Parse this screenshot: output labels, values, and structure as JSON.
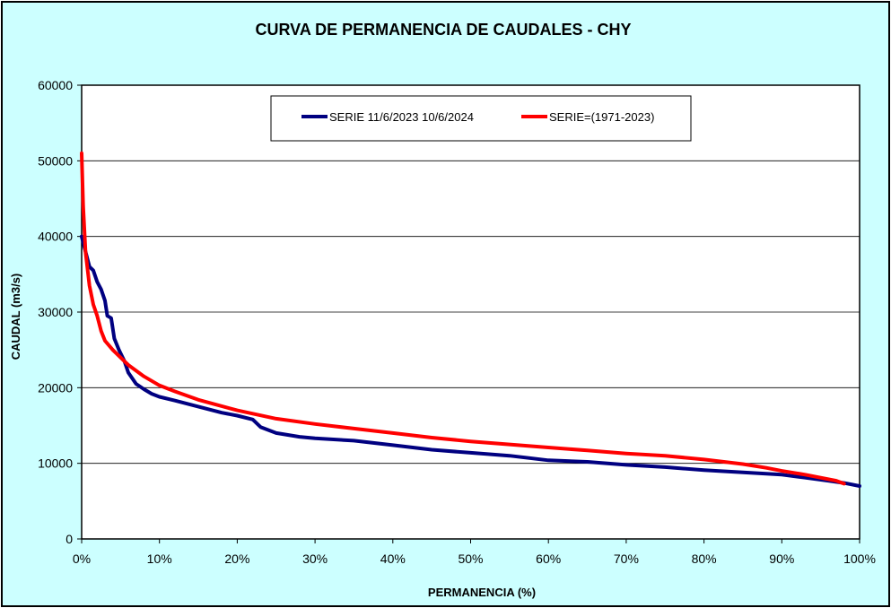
{
  "chart_data": {
    "type": "line",
    "title": "CURVA DE PERMANENCIA DE CAUDALES - CHY",
    "xlabel": "PERMANENCIA (%)",
    "ylabel": "CAUDAL (m3/s)",
    "xlim": [
      0,
      100
    ],
    "ylim": [
      0,
      60000
    ],
    "x_ticks": [
      "0%",
      "10%",
      "20%",
      "30%",
      "40%",
      "50%",
      "60%",
      "70%",
      "80%",
      "90%",
      "100%"
    ],
    "y_ticks": [
      "0",
      "10000",
      "20000",
      "30000",
      "40000",
      "50000",
      "60000"
    ],
    "grid": "horizontal",
    "legend_position": "top-center",
    "series": [
      {
        "name": "SERIE 11/6/2023 10/6/2024",
        "color": "#000080",
        "points": [
          [
            0,
            40000
          ],
          [
            0.5,
            38000
          ],
          [
            1,
            36000
          ],
          [
            1.5,
            35500
          ],
          [
            2,
            34000
          ],
          [
            2.5,
            33000
          ],
          [
            3,
            31500
          ],
          [
            3.3,
            29500
          ],
          [
            3.8,
            29200
          ],
          [
            4.2,
            26500
          ],
          [
            4.8,
            25000
          ],
          [
            5.5,
            23500
          ],
          [
            6,
            22000
          ],
          [
            7,
            20500
          ],
          [
            8,
            19800
          ],
          [
            9,
            19200
          ],
          [
            10,
            18800
          ],
          [
            12,
            18300
          ],
          [
            15,
            17500
          ],
          [
            18,
            16700
          ],
          [
            20,
            16300
          ],
          [
            22,
            15800
          ],
          [
            23,
            14800
          ],
          [
            25,
            14000
          ],
          [
            28,
            13500
          ],
          [
            30,
            13300
          ],
          [
            35,
            13000
          ],
          [
            40,
            12400
          ],
          [
            45,
            11800
          ],
          [
            50,
            11400
          ],
          [
            55,
            11000
          ],
          [
            60,
            10400
          ],
          [
            65,
            10200
          ],
          [
            70,
            9800
          ],
          [
            75,
            9500
          ],
          [
            80,
            9100
          ],
          [
            85,
            8800
          ],
          [
            90,
            8500
          ],
          [
            93,
            8100
          ],
          [
            96,
            7700
          ],
          [
            98,
            7400
          ],
          [
            100,
            7000
          ]
        ]
      },
      {
        "name": "SERIE=(1971-2023)",
        "color": "#ff0000",
        "points": [
          [
            0,
            51000
          ],
          [
            0.2,
            44000
          ],
          [
            0.5,
            38000
          ],
          [
            1,
            33500
          ],
          [
            1.5,
            31000
          ],
          [
            2,
            29500
          ],
          [
            2.5,
            27500
          ],
          [
            3,
            26200
          ],
          [
            4,
            25000
          ],
          [
            5,
            24000
          ],
          [
            6,
            23000
          ],
          [
            8,
            21500
          ],
          [
            10,
            20300
          ],
          [
            12,
            19500
          ],
          [
            15,
            18400
          ],
          [
            20,
            17000
          ],
          [
            25,
            15900
          ],
          [
            30,
            15200
          ],
          [
            35,
            14600
          ],
          [
            40,
            14000
          ],
          [
            45,
            13400
          ],
          [
            50,
            12900
          ],
          [
            55,
            12500
          ],
          [
            60,
            12100
          ],
          [
            65,
            11700
          ],
          [
            70,
            11300
          ],
          [
            75,
            11000
          ],
          [
            80,
            10500
          ],
          [
            85,
            9900
          ],
          [
            88,
            9400
          ],
          [
            90,
            9000
          ],
          [
            93,
            8500
          ],
          [
            95,
            8100
          ],
          [
            97,
            7700
          ],
          [
            98,
            7300
          ]
        ]
      }
    ]
  }
}
